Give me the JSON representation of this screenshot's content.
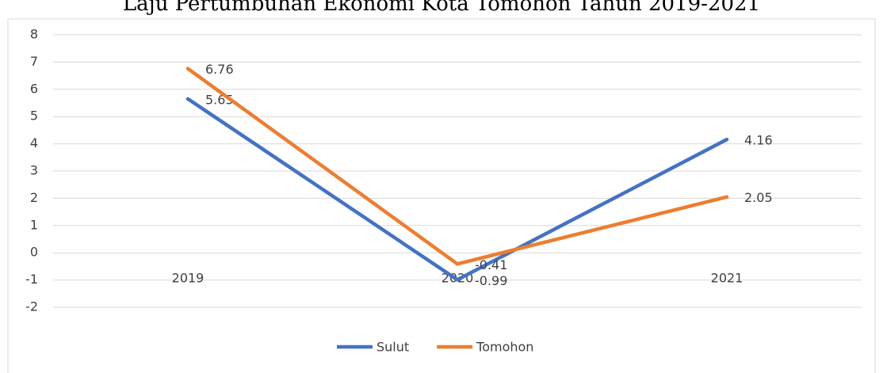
{
  "chart_data": {
    "type": "line",
    "title": "Laju Pertumbuhan Ekonomi Kota Tomohon Tahun 2019-2021",
    "categories": [
      "2019",
      "2020",
      "2021"
    ],
    "series": [
      {
        "name": "Sulut",
        "color": "#4472c4",
        "values": [
          5.65,
          -0.99,
          4.16
        ]
      },
      {
        "name": "Tomohon",
        "color": "#ed7d31",
        "values": [
          6.76,
          -0.41,
          2.05
        ]
      }
    ],
    "ylim": [
      -2,
      8
    ],
    "yticks": [
      -2,
      -1,
      0,
      1,
      2,
      3,
      4,
      5,
      6,
      7,
      8
    ],
    "grid": true,
    "legend": "bottom"
  }
}
